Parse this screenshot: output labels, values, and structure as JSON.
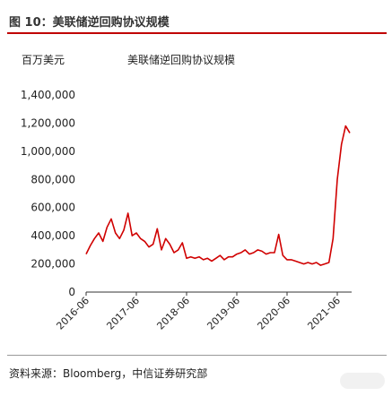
{
  "figure": {
    "title": "图 10：美联储逆回购协议规模",
    "unit": "百万美元",
    "source": "资料来源：Bloomberg，中信证券研究部"
  },
  "colors": {
    "line": "#d00000",
    "title_rule": "#c00000",
    "axis": "#333333"
  },
  "watermark_icon": "watermark-icon",
  "chart_data": {
    "type": "line",
    "title": "",
    "xlabel": "",
    "ylabel": "百万美元",
    "ylim": [
      0,
      1400000
    ],
    "yticks": [
      "0",
      "200,000",
      "400,000",
      "600,000",
      "800,000",
      "1,000,000",
      "1,200,000",
      "1,400,000"
    ],
    "xticks": [
      "2016-06",
      "2017-06",
      "2018-06",
      "2019-06",
      "2020-06",
      "2021-06"
    ],
    "grid": false,
    "legend": "top",
    "series": [
      {
        "name": "美联储逆回购协议规模",
        "x": [
          "2016-06",
          "2016-07",
          "2016-08",
          "2016-09",
          "2016-10",
          "2016-11",
          "2016-12",
          "2017-01",
          "2017-02",
          "2017-03",
          "2017-04",
          "2017-05",
          "2017-06",
          "2017-07",
          "2017-08",
          "2017-09",
          "2017-10",
          "2017-11",
          "2017-12",
          "2018-01",
          "2018-02",
          "2018-03",
          "2018-04",
          "2018-05",
          "2018-06",
          "2018-07",
          "2018-08",
          "2018-09",
          "2018-10",
          "2018-11",
          "2018-12",
          "2019-01",
          "2019-02",
          "2019-03",
          "2019-04",
          "2019-05",
          "2019-06",
          "2019-07",
          "2019-08",
          "2019-09",
          "2019-10",
          "2019-11",
          "2019-12",
          "2020-01",
          "2020-02",
          "2020-03",
          "2020-04",
          "2020-05",
          "2020-06",
          "2020-07",
          "2020-08",
          "2020-09",
          "2020-10",
          "2020-11",
          "2020-12",
          "2021-01",
          "2021-02",
          "2021-03",
          "2021-04",
          "2021-05",
          "2021-06",
          "2021-07",
          "2021-08",
          "2021-09"
        ],
        "values": [
          270000,
          330000,
          380000,
          420000,
          360000,
          460000,
          520000,
          420000,
          380000,
          440000,
          560000,
          400000,
          420000,
          380000,
          360000,
          320000,
          340000,
          450000,
          300000,
          380000,
          340000,
          280000,
          300000,
          350000,
          240000,
          250000,
          240000,
          250000,
          230000,
          240000,
          220000,
          240000,
          260000,
          230000,
          250000,
          250000,
          270000,
          280000,
          300000,
          270000,
          280000,
          300000,
          290000,
          270000,
          280000,
          280000,
          410000,
          260000,
          230000,
          230000,
          220000,
          210000,
          200000,
          210000,
          200000,
          210000,
          190000,
          200000,
          210000,
          380000,
          800000,
          1050000,
          1180000,
          1130000
        ]
      }
    ]
  }
}
